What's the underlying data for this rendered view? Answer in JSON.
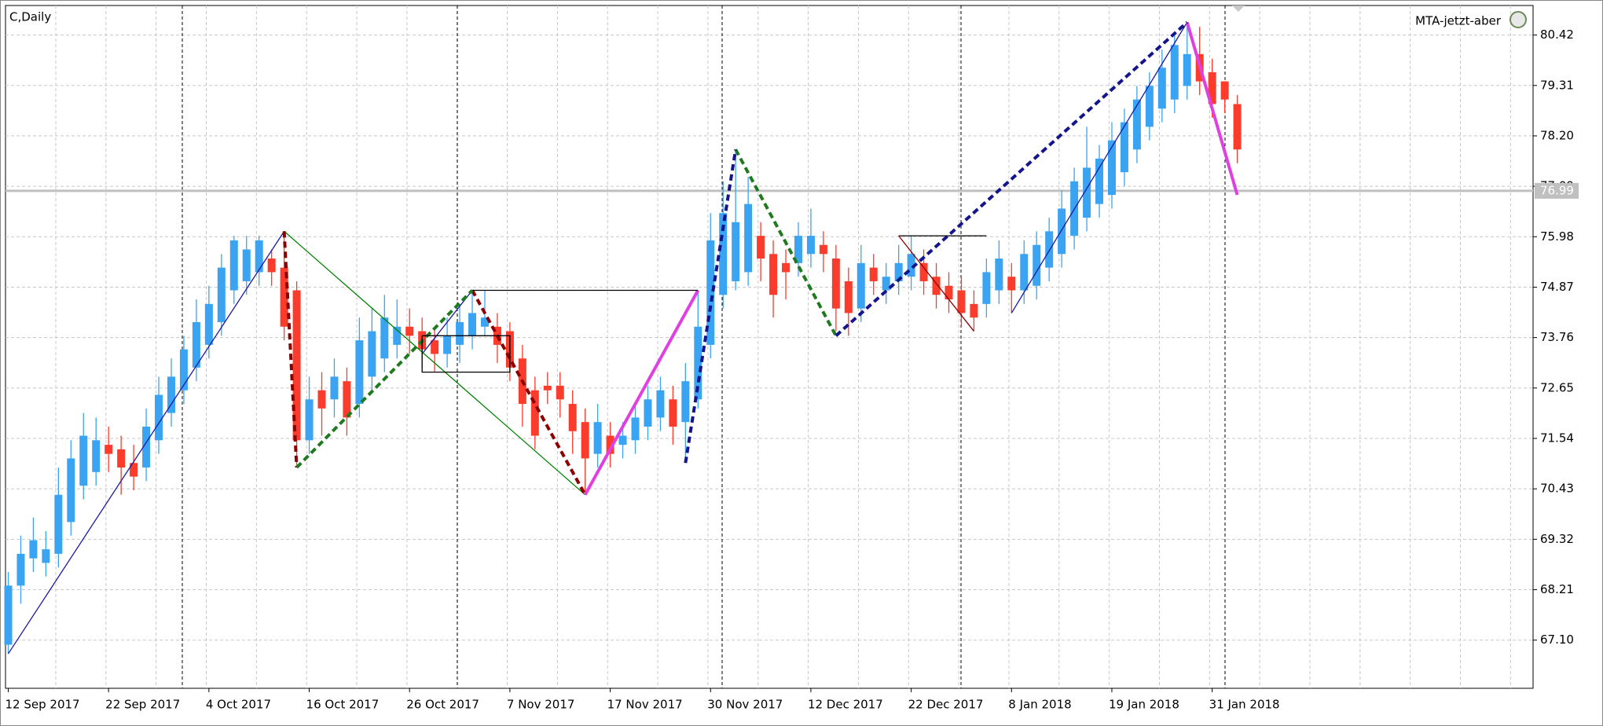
{
  "chart_data": {
    "type": "candlestick",
    "title": "C,Daily",
    "indicator_label": "MTA-jetzt-aber",
    "categories": [
      "12 Sep 2017",
      null,
      null,
      null,
      null,
      null,
      null,
      null,
      "22 Sep 2017",
      null,
      null,
      null,
      null,
      null,
      null,
      null,
      "4 Oct 2017",
      null,
      null,
      null,
      null,
      null,
      null,
      null,
      "16 Oct 2017",
      null,
      null,
      null,
      null,
      null,
      null,
      null,
      "26 Oct 2017",
      null,
      null,
      null,
      null,
      null,
      null,
      null,
      "7 Nov 2017",
      null,
      null,
      null,
      null,
      null,
      null,
      null,
      "17 Nov 2017",
      null,
      null,
      null,
      null,
      null,
      null,
      null,
      "30 Nov 2017",
      null,
      null,
      null,
      null,
      null,
      null,
      null,
      "12 Dec 2017",
      null,
      null,
      null,
      null,
      null,
      null,
      null,
      "22 Dec 2017",
      null,
      null,
      null,
      null,
      null,
      null,
      null,
      "8 Jan 2018",
      null,
      null,
      null,
      null,
      null,
      null,
      null,
      "19 Jan 2018",
      null,
      null,
      null,
      null,
      null,
      null,
      null,
      "31 Jan 2018",
      null,
      null
    ],
    "open": [
      67.0,
      68.3,
      68.9,
      68.8,
      69.0,
      69.7,
      70.5,
      70.8,
      71.4,
      71.3,
      71.0,
      70.9,
      71.5,
      72.1,
      72.6,
      73.1,
      73.6,
      74.1,
      74.8,
      75.0,
      75.2,
      75.5,
      75.3,
      74.8,
      71.5,
      72.6,
      72.4,
      72.8,
      72.3,
      72.9,
      73.3,
      73.6,
      74.0,
      73.9,
      73.7,
      73.4,
      73.6,
      73.8,
      74.0,
      74.0,
      73.9,
      73.3,
      72.6,
      72.7,
      72.7,
      72.3,
      71.9,
      71.2,
      71.6,
      71.4,
      71.5,
      71.8,
      72.0,
      72.4,
      71.9,
      72.4,
      73.6,
      74.7,
      75.0,
      75.2,
      76.0,
      75.6,
      75.4,
      75.4,
      75.6,
      75.8,
      75.5,
      75.0,
      74.4,
      75.3,
      74.8,
      75.0,
      75.1,
      75.4,
      75.1,
      74.9,
      74.8,
      74.5,
      74.5,
      74.8,
      75.1,
      74.8,
      74.9,
      75.3,
      75.6,
      76.0,
      76.4,
      76.7,
      76.9,
      77.4,
      77.9,
      78.4,
      78.8,
      79.0,
      79.3,
      80.0,
      79.6,
      79.4,
      78.9
    ],
    "high": [
      68.6,
      69.4,
      69.8,
      69.5,
      70.9,
      71.5,
      72.1,
      72.0,
      71.8,
      71.6,
      71.4,
      72.2,
      72.9,
      73.3,
      73.8,
      74.6,
      74.9,
      75.6,
      76.0,
      76.0,
      76.0,
      75.7,
      76.1,
      75.0,
      72.9,
      73.0,
      73.3,
      73.1,
      74.2,
      74.4,
      74.7,
      74.6,
      74.4,
      74.2,
      74.0,
      74.2,
      74.5,
      74.8,
      74.8,
      74.3,
      74.1,
      73.6,
      72.9,
      73.0,
      73.0,
      72.6,
      72.2,
      72.3,
      71.9,
      71.9,
      72.3,
      72.7,
      72.9,
      72.7,
      73.2,
      74.8,
      76.5,
      77.2,
      77.9,
      77.3,
      76.3,
      75.9,
      75.7,
      76.3,
      76.6,
      76.1,
      75.8,
      75.3,
      75.8,
      75.6,
      75.4,
      75.8,
      76.0,
      75.7,
      75.4,
      75.2,
      75.1,
      74.8,
      75.5,
      75.9,
      75.4,
      75.9,
      76.1,
      76.4,
      77.0,
      77.5,
      78.4,
      78.0,
      78.5,
      78.8,
      79.3,
      79.6,
      80.1,
      80.5,
      80.7,
      80.6,
      79.9,
      79.4,
      79.1
    ],
    "low": [
      66.8,
      67.9,
      68.6,
      68.5,
      68.7,
      69.4,
      70.2,
      70.5,
      70.8,
      70.3,
      70.4,
      70.6,
      71.2,
      71.8,
      72.3,
      72.8,
      73.3,
      73.8,
      74.5,
      74.7,
      74.9,
      74.9,
      73.7,
      70.9,
      71.2,
      71.6,
      72.0,
      71.6,
      72.0,
      72.6,
      73.0,
      73.3,
      73.4,
      73.1,
      73.0,
      73.1,
      73.2,
      73.5,
      73.8,
      73.2,
      72.8,
      71.8,
      71.3,
      72.3,
      72.0,
      71.2,
      70.3,
      70.9,
      70.9,
      71.1,
      71.2,
      71.5,
      71.7,
      71.4,
      71.0,
      72.2,
      73.3,
      74.4,
      74.8,
      74.9,
      75.0,
      74.2,
      74.6,
      75.1,
      75.3,
      75.2,
      73.9,
      73.8,
      74.1,
      74.7,
      74.5,
      74.7,
      74.8,
      74.7,
      74.4,
      74.3,
      74.0,
      73.9,
      74.2,
      74.5,
      74.3,
      74.5,
      74.6,
      75.0,
      75.3,
      75.7,
      76.1,
      76.4,
      76.6,
      77.1,
      77.6,
      78.1,
      78.5,
      78.7,
      79.0,
      79.1,
      78.6,
      78.7,
      77.6
    ],
    "close": [
      68.3,
      69.0,
      69.3,
      69.1,
      70.3,
      71.1,
      71.6,
      71.5,
      71.2,
      70.9,
      70.7,
      71.8,
      72.5,
      72.9,
      73.5,
      74.1,
      74.5,
      75.3,
      75.9,
      75.7,
      75.9,
      75.2,
      74.0,
      71.5,
      72.4,
      72.2,
      72.9,
      72.0,
      73.7,
      73.9,
      74.2,
      74.0,
      73.8,
      73.5,
      73.4,
      73.8,
      74.1,
      74.3,
      74.2,
      73.6,
      73.1,
      72.3,
      71.6,
      72.6,
      72.4,
      71.7,
      71.1,
      71.9,
      71.2,
      71.6,
      72.0,
      72.4,
      72.6,
      71.8,
      72.8,
      74.0,
      75.9,
      76.5,
      76.3,
      76.7,
      75.5,
      74.7,
      75.2,
      76.0,
      76.0,
      75.6,
      74.4,
      74.3,
      75.4,
      75.0,
      75.1,
      75.4,
      75.6,
      75.0,
      74.7,
      74.6,
      74.3,
      74.2,
      75.2,
      75.5,
      74.8,
      75.6,
      75.8,
      76.1,
      76.6,
      77.2,
      77.5,
      77.7,
      78.1,
      78.5,
      79.0,
      79.3,
      79.7,
      80.2,
      80.0,
      79.4,
      78.9,
      79.0,
      77.9
    ],
    "up_color": "#3aa4f2",
    "down_color": "#fb3b2c",
    "current_price": 76.99,
    "ylim": [
      66.04,
      81.07
    ],
    "yticks": [
      80.42,
      79.31,
      {
        "value": 78.2,
        "label": "78.20"
      },
      77.09,
      75.98,
      74.87,
      73.76,
      72.65,
      71.54,
      70.43,
      69.32,
      68.21,
      {
        "value": 67.1,
        "label": "67.10"
      }
    ],
    "grid": true,
    "lines": [
      {
        "color": "#1a1aa0",
        "dash": false,
        "width": 1.3,
        "x": [
          0,
          22
        ],
        "y": [
          66.8,
          76.1
        ]
      },
      {
        "color": "#1a1aa0",
        "dash": false,
        "width": 1.3,
        "x": [
          33,
          37
        ],
        "y": [
          73.4,
          74.8
        ]
      },
      {
        "color": "#1a1aa0",
        "dash": false,
        "width": 1.3,
        "x": [
          80,
          94
        ],
        "y": [
          74.3,
          80.7
        ]
      },
      {
        "color": "#008000",
        "dash": false,
        "width": 1.3,
        "x": [
          22,
          46
        ],
        "y": [
          76.1,
          70.3
        ]
      },
      {
        "color": "#8b0000",
        "dash": true,
        "width": 4,
        "x": [
          22,
          23
        ],
        "y": [
          76.1,
          70.9
        ]
      },
      {
        "color": "#8b0000",
        "dash": true,
        "width": 4,
        "x": [
          37,
          46
        ],
        "y": [
          74.8,
          70.3
        ]
      },
      {
        "color": "#1e7a1e",
        "dash": true,
        "width": 4,
        "x": [
          23,
          37
        ],
        "y": [
          70.9,
          74.8
        ]
      },
      {
        "color": "#1e7a1e",
        "dash": true,
        "width": 4,
        "x": [
          58,
          66
        ],
        "y": [
          77.9,
          73.8
        ]
      },
      {
        "color": "#e040e0",
        "dash": false,
        "width": 4,
        "x": [
          46,
          55
        ],
        "y": [
          70.3,
          74.8
        ]
      },
      {
        "color": "#e040e0",
        "dash": false,
        "width": 4,
        "x": [
          94,
          98
        ],
        "y": [
          80.7,
          76.9
        ]
      },
      {
        "color": "#14148c",
        "dash": true,
        "width": 4,
        "x": [
          54,
          58
        ],
        "y": [
          71.0,
          77.9
        ]
      },
      {
        "color": "#14148c",
        "dash": true,
        "width": 4,
        "x": [
          66,
          94
        ],
        "y": [
          73.8,
          80.7
        ]
      },
      {
        "color": "#000000",
        "dash": false,
        "width": 1.3,
        "x": [
          37,
          55
        ],
        "y": [
          74.8,
          74.8
        ]
      },
      {
        "color": "#000000",
        "dash": false,
        "width": 1.3,
        "x": [
          33,
          33,
          40,
          40,
          33
        ],
        "y": [
          73.8,
          73.0,
          73.0,
          73.8,
          73.8
        ]
      },
      {
        "color": "#000000",
        "dash": false,
        "width": 1.3,
        "x": [
          71,
          78
        ],
        "y": [
          76.0,
          76.0
        ]
      },
      {
        "color": "#8b0000",
        "dash": false,
        "width": 1.3,
        "x": [
          71,
          77
        ],
        "y": [
          76.0,
          73.9
        ]
      }
    ]
  }
}
